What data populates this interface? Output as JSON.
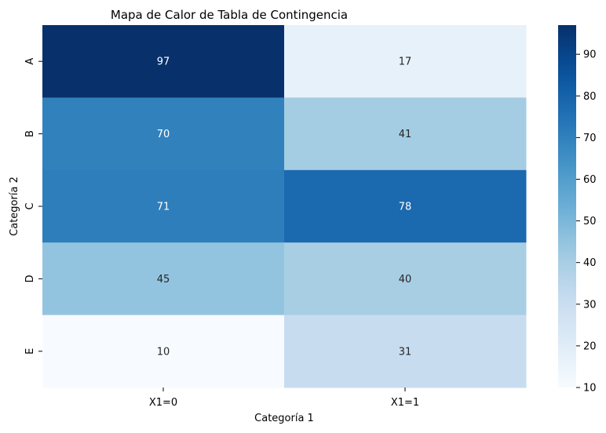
{
  "chart_data": {
    "type": "heatmap",
    "title": "Mapa de Calor de Tabla de Contingencia",
    "xlabel": "Categoría 1",
    "ylabel": "Categoría 2",
    "x_categories": [
      "X1=0",
      "X1=1"
    ],
    "y_categories": [
      "A",
      "B",
      "C",
      "D",
      "E"
    ],
    "values": [
      [
        97,
        17
      ],
      [
        70,
        41
      ],
      [
        71,
        78
      ],
      [
        45,
        40
      ],
      [
        10,
        31
      ]
    ],
    "colormap": "Blues",
    "vmin": 10,
    "vmax": 97,
    "colorbar_ticks": [
      10,
      20,
      30,
      40,
      50,
      60,
      70,
      80,
      90
    ],
    "annotations": true,
    "colorbar": true
  }
}
